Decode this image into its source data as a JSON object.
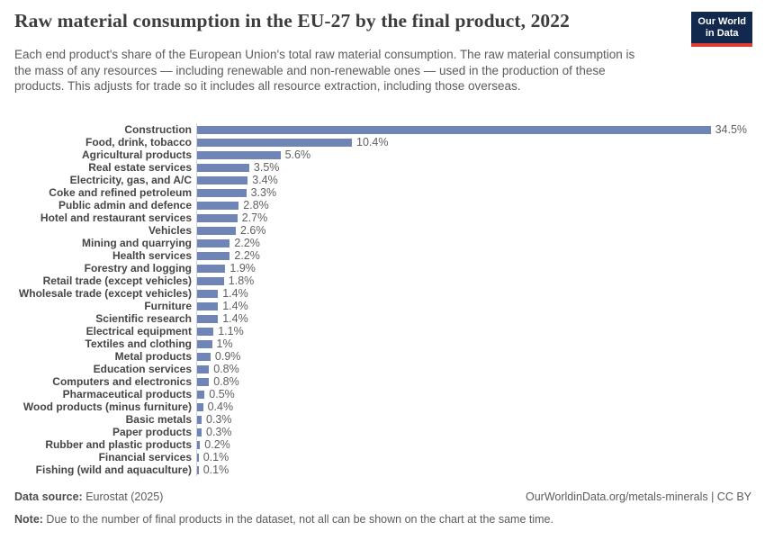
{
  "header": {
    "title": "Raw material consumption in the EU-27 by the final product, 2022",
    "subtitle": "Each end product's share of the European Union's total raw material consumption. The raw material consumption is the mass of any resources — including renewable and non-renewable ones — used in the production of these products. This adjusts for trade so it includes all resource extraction, including those overseas.",
    "logo_line1": "Our World",
    "logo_line2": "in Data"
  },
  "chart_data": {
    "type": "bar",
    "orientation": "horizontal",
    "title": "Raw material consumption in the EU-27 by the final product, 2022",
    "unit": "%",
    "xlim": [
      0,
      34.5
    ],
    "grid": false,
    "legend": "none",
    "bar_color": "#6f85b5",
    "categories": [
      "Construction",
      "Food, drink, tobacco",
      "Agricultural products",
      "Real estate services",
      "Electricity, gas, and A/C",
      "Coke and refined petroleum",
      "Public admin and defence",
      "Hotel and restaurant services",
      "Vehicles",
      "Mining and quarrying",
      "Health services",
      "Forestry and logging",
      "Retail trade (except vehicles)",
      "Wholesale trade (except vehicles)",
      "Furniture",
      "Scientific research",
      "Electrical equipment",
      "Textiles and clothing",
      "Metal products",
      "Education services",
      "Computers and electronics",
      "Pharmaceutical products",
      "Wood products (minus furniture)",
      "Basic metals",
      "Paper products",
      "Rubber and plastic products",
      "Financial services",
      "Fishing (wild and aquaculture)"
    ],
    "values": [
      34.5,
      10.4,
      5.6,
      3.5,
      3.4,
      3.3,
      2.8,
      2.7,
      2.6,
      2.2,
      2.2,
      1.9,
      1.8,
      1.4,
      1.4,
      1.4,
      1.1,
      1,
      0.9,
      0.8,
      0.8,
      0.5,
      0.4,
      0.3,
      0.3,
      0.2,
      0.1,
      0.1
    ],
    "value_labels": [
      "34.5%",
      "10.4%",
      "5.6%",
      "3.5%",
      "3.4%",
      "3.3%",
      "2.8%",
      "2.7%",
      "2.6%",
      "2.2%",
      "2.2%",
      "1.9%",
      "1.8%",
      "1.4%",
      "1.4%",
      "1.4%",
      "1.1%",
      "1%",
      "0.9%",
      "0.8%",
      "0.8%",
      "0.5%",
      "0.4%",
      "0.3%",
      "0.3%",
      "0.2%",
      "0.1%",
      "0.1%"
    ]
  },
  "footer": {
    "datasource_label": "Data source:",
    "datasource_value": " Eurostat (2025)",
    "citation": "OurWorldinData.org/metals-minerals | CC BY",
    "note_label": "Note:",
    "note_value": " Due to the number of final products in the dataset, not all can be shown on the chart at the same time."
  },
  "colors": {
    "bar": "#6f85b5",
    "title_text": "#3d3d3d",
    "body_text": "#5b5b5b",
    "logo_bg": "#12294d",
    "logo_accent": "#dc3e32",
    "axis_line": "#cdd4de"
  }
}
